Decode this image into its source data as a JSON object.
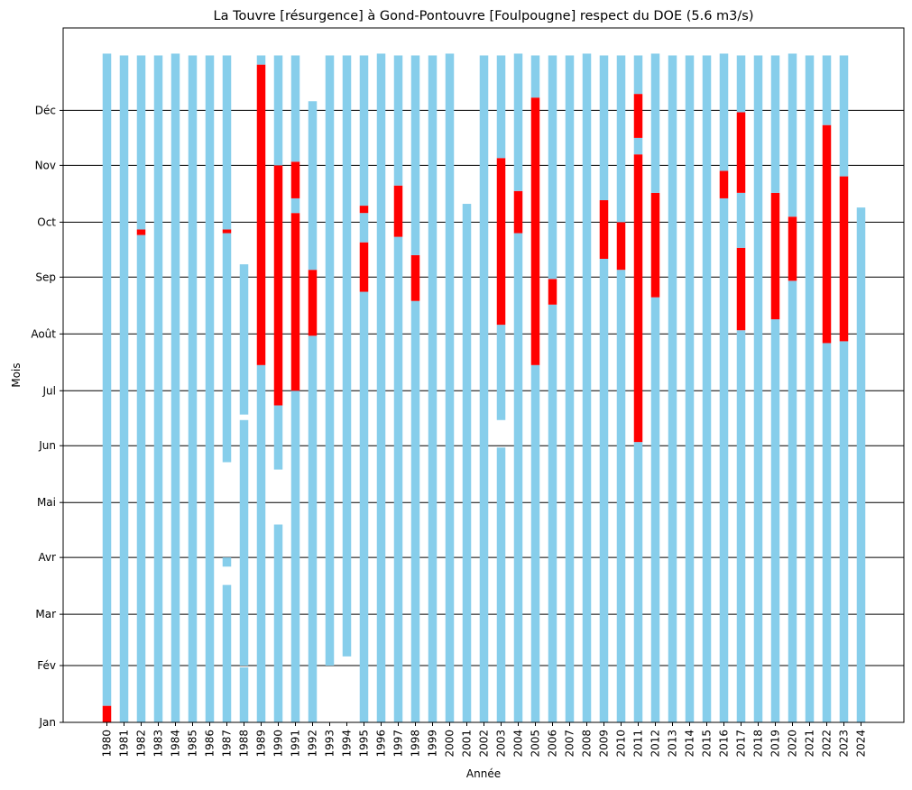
{
  "chart_data": {
    "type": "bar",
    "title": "La Touvre [résurgence] à Gond-Pontouvre [Foulpougne] respect du DOE (5.6 m3/s)",
    "xlabel": "Année",
    "ylabel": "Mois",
    "month_ticks": [
      "Jan",
      "Fév",
      "Mar",
      "Avr",
      "Mai",
      "Jun",
      "Jul",
      "Août",
      "Sep",
      "Oct",
      "Nov",
      "Déc"
    ],
    "ylim_day_of_year": [
      1,
      380
    ],
    "grid_y": true,
    "colors": {
      "respected": "#87ceeb",
      "not_respected": "#ff0000"
    },
    "series": [
      {
        "key": "respected",
        "color": "#87ceeb"
      },
      {
        "key": "not_respected",
        "color": "#ff0000"
      }
    ],
    "years": [
      {
        "year": "1980",
        "segments": [
          [
            "respected",
            10,
            366
          ],
          [
            "not_respected",
            1,
            10
          ]
        ]
      },
      {
        "year": "1981",
        "segments": [
          [
            "respected",
            1,
            365
          ]
        ]
      },
      {
        "year": "1982",
        "segments": [
          [
            "respected",
            1,
            267
          ],
          [
            "not_respected",
            267,
            270
          ],
          [
            "respected",
            270,
            365
          ]
        ]
      },
      {
        "year": "1983",
        "segments": [
          [
            "respected",
            1,
            365
          ]
        ]
      },
      {
        "year": "1984",
        "segments": [
          [
            "respected",
            1,
            366
          ]
        ]
      },
      {
        "year": "1985",
        "segments": [
          [
            "respected",
            1,
            365
          ]
        ]
      },
      {
        "year": "1986",
        "segments": [
          [
            "respected",
            1,
            365
          ]
        ]
      },
      {
        "year": "1987",
        "segments": [
          [
            "respected",
            1,
            76
          ],
          [
            "respected",
            86,
            91
          ],
          [
            "respected",
            143,
            268
          ],
          [
            "not_respected",
            268,
            270
          ],
          [
            "respected",
            270,
            365
          ]
        ]
      },
      {
        "year": "1988",
        "segments": [
          [
            "respected",
            1,
            31
          ],
          [
            "respected",
            32,
            166
          ],
          [
            "respected",
            169,
            251
          ]
        ]
      },
      {
        "year": "1989",
        "segments": [
          [
            "respected",
            1,
            196
          ],
          [
            "not_respected",
            196,
            360
          ],
          [
            "respected",
            360,
            365
          ]
        ]
      },
      {
        "year": "1990",
        "segments": [
          [
            "respected",
            1,
            109
          ],
          [
            "respected",
            139,
            174
          ],
          [
            "not_respected",
            174,
            305
          ],
          [
            "respected",
            305,
            365
          ]
        ]
      },
      {
        "year": "1991",
        "segments": [
          [
            "respected",
            1,
            182
          ],
          [
            "not_respected",
            182,
            279
          ],
          [
            "respected",
            279,
            287
          ],
          [
            "not_respected",
            287,
            307
          ],
          [
            "respected",
            307,
            365
          ]
        ]
      },
      {
        "year": "1992",
        "segments": [
          [
            "respected",
            1,
            212
          ],
          [
            "not_respected",
            212,
            248
          ],
          [
            "respected",
            248,
            340
          ]
        ]
      },
      {
        "year": "1993",
        "segments": [
          [
            "respected",
            32,
            365
          ]
        ]
      },
      {
        "year": "1994",
        "segments": [
          [
            "respected",
            37,
            365
          ]
        ]
      },
      {
        "year": "1995",
        "segments": [
          [
            "respected",
            1,
            236
          ],
          [
            "not_respected",
            236,
            263
          ],
          [
            "respected",
            263,
            279
          ],
          [
            "not_respected",
            279,
            283
          ],
          [
            "respected",
            283,
            365
          ]
        ]
      },
      {
        "year": "1996",
        "segments": [
          [
            "respected",
            1,
            366
          ]
        ]
      },
      {
        "year": "1997",
        "segments": [
          [
            "respected",
            1,
            266
          ],
          [
            "not_respected",
            266,
            294
          ],
          [
            "respected",
            294,
            365
          ]
        ]
      },
      {
        "year": "1998",
        "segments": [
          [
            "respected",
            1,
            231
          ],
          [
            "not_respected",
            231,
            256
          ],
          [
            "respected",
            256,
            365
          ]
        ]
      },
      {
        "year": "1999",
        "segments": [
          [
            "respected",
            1,
            365
          ]
        ]
      },
      {
        "year": "2000",
        "segments": [
          [
            "respected",
            1,
            366
          ]
        ]
      },
      {
        "year": "2001",
        "segments": [
          [
            "respected",
            1,
            284
          ]
        ]
      },
      {
        "year": "2002",
        "segments": [
          [
            "respected",
            1,
            365
          ]
        ]
      },
      {
        "year": "2003",
        "segments": [
          [
            "respected",
            1,
            151
          ],
          [
            "respected",
            166,
            218
          ],
          [
            "not_respected",
            218,
            309
          ],
          [
            "respected",
            309,
            365
          ]
        ]
      },
      {
        "year": "2004",
        "segments": [
          [
            "respected",
            1,
            268
          ],
          [
            "not_respected",
            268,
            291
          ],
          [
            "respected",
            291,
            366
          ]
        ]
      },
      {
        "year": "2005",
        "segments": [
          [
            "respected",
            1,
            196
          ],
          [
            "not_respected",
            196,
            342
          ],
          [
            "respected",
            342,
            365
          ]
        ]
      },
      {
        "year": "2006",
        "segments": [
          [
            "respected",
            1,
            229
          ],
          [
            "not_respected",
            229,
            243
          ],
          [
            "respected",
            243,
            365
          ]
        ]
      },
      {
        "year": "2007",
        "segments": [
          [
            "respected",
            1,
            365
          ]
        ]
      },
      {
        "year": "2008",
        "segments": [
          [
            "respected",
            1,
            366
          ]
        ]
      },
      {
        "year": "2009",
        "segments": [
          [
            "respected",
            1,
            254
          ],
          [
            "not_respected",
            254,
            286
          ],
          [
            "respected",
            286,
            365
          ]
        ]
      },
      {
        "year": "2010",
        "segments": [
          [
            "respected",
            1,
            248
          ],
          [
            "not_respected",
            248,
            274
          ],
          [
            "respected",
            274,
            365
          ]
        ]
      },
      {
        "year": "2011",
        "segments": [
          [
            "respected",
            1,
            154
          ],
          [
            "not_respected",
            154,
            311
          ],
          [
            "respected",
            311,
            320
          ],
          [
            "not_respected",
            320,
            344
          ],
          [
            "respected",
            344,
            365
          ]
        ]
      },
      {
        "year": "2012",
        "segments": [
          [
            "respected",
            1,
            233
          ],
          [
            "not_respected",
            233,
            290
          ],
          [
            "respected",
            290,
            366
          ]
        ]
      },
      {
        "year": "2013",
        "segments": [
          [
            "respected",
            1,
            365
          ]
        ]
      },
      {
        "year": "2014",
        "segments": [
          [
            "respected",
            1,
            365
          ]
        ]
      },
      {
        "year": "2015",
        "segments": [
          [
            "respected",
            1,
            365
          ]
        ]
      },
      {
        "year": "2016",
        "segments": [
          [
            "respected",
            1,
            287
          ],
          [
            "not_respected",
            287,
            302
          ],
          [
            "respected",
            302,
            366
          ]
        ]
      },
      {
        "year": "2017",
        "segments": [
          [
            "respected",
            1,
            215
          ],
          [
            "not_respected",
            215,
            260
          ],
          [
            "respected",
            260,
            290
          ],
          [
            "not_respected",
            290,
            334
          ],
          [
            "respected",
            334,
            365
          ]
        ]
      },
      {
        "year": "2018",
        "segments": [
          [
            "respected",
            1,
            365
          ]
        ]
      },
      {
        "year": "2019",
        "segments": [
          [
            "respected",
            1,
            221
          ],
          [
            "not_respected",
            221,
            290
          ],
          [
            "respected",
            290,
            365
          ]
        ]
      },
      {
        "year": "2020",
        "segments": [
          [
            "respected",
            1,
            242
          ],
          [
            "not_respected",
            242,
            277
          ],
          [
            "respected",
            277,
            366
          ]
        ]
      },
      {
        "year": "2021",
        "segments": [
          [
            "respected",
            1,
            365
          ]
        ]
      },
      {
        "year": "2022",
        "segments": [
          [
            "respected",
            1,
            208
          ],
          [
            "not_respected",
            208,
            327
          ],
          [
            "respected",
            327,
            365
          ]
        ]
      },
      {
        "year": "2023",
        "segments": [
          [
            "respected",
            1,
            209
          ],
          [
            "not_respected",
            209,
            299
          ],
          [
            "respected",
            299,
            365
          ]
        ]
      },
      {
        "year": "2024",
        "segments": [
          [
            "respected",
            1,
            282
          ]
        ]
      }
    ]
  }
}
